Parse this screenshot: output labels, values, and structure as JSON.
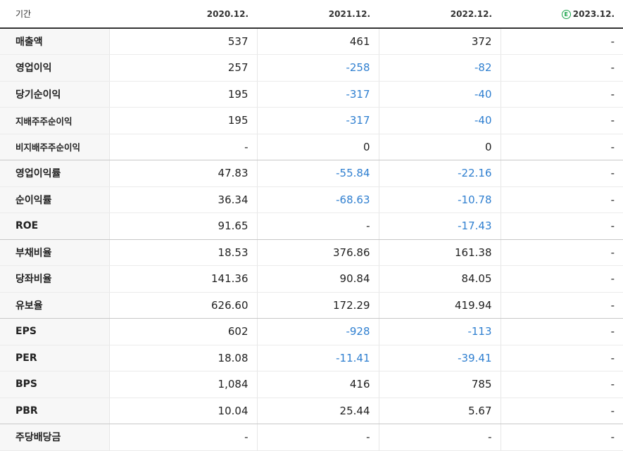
{
  "table": {
    "header": {
      "label": "기간",
      "periods": [
        "2020.12.",
        "2021.12.",
        "2022.12.",
        "2023.12."
      ],
      "estimate_icon": "Ⓔ"
    },
    "rows": [
      {
        "label": "매출액",
        "values": [
          "537",
          "461",
          "372",
          "-"
        ]
      },
      {
        "label": "영업이익",
        "values": [
          "257",
          "-258",
          "-82",
          "-"
        ]
      },
      {
        "label": "당기순이익",
        "values": [
          "195",
          "-317",
          "-40",
          "-"
        ]
      },
      {
        "label": "지배주주순이익",
        "values": [
          "195",
          "-317",
          "-40",
          "-"
        ]
      },
      {
        "label": "비지배주주순이익",
        "values": [
          "-",
          "0",
          "0",
          "-"
        ]
      },
      {
        "label": "영업이익률",
        "values": [
          "47.83",
          "-55.84",
          "-22.16",
          "-"
        ]
      },
      {
        "label": "순이익률",
        "values": [
          "36.34",
          "-68.63",
          "-10.78",
          "-"
        ]
      },
      {
        "label": "ROE",
        "values": [
          "91.65",
          "-",
          "-17.43",
          "-"
        ]
      },
      {
        "label": "부채비율",
        "values": [
          "18.53",
          "376.86",
          "161.38",
          "-"
        ]
      },
      {
        "label": "당좌비율",
        "values": [
          "141.36",
          "90.84",
          "84.05",
          "-"
        ]
      },
      {
        "label": "유보율",
        "values": [
          "626.60",
          "172.29",
          "419.94",
          "-"
        ]
      },
      {
        "label": "EPS",
        "values": [
          "602",
          "-928",
          "-113",
          "-"
        ]
      },
      {
        "label": "PER",
        "values": [
          "18.08",
          "-11.41",
          "-39.41",
          "-"
        ]
      },
      {
        "label": "BPS",
        "values": [
          "1,084",
          "416",
          "785",
          "-"
        ]
      },
      {
        "label": "PBR",
        "values": [
          "10.04",
          "25.44",
          "5.67",
          "-"
        ]
      },
      {
        "label": "주당배당금",
        "values": [
          "-",
          "-",
          "-",
          "-"
        ]
      }
    ]
  },
  "colors": {
    "negative": "#2f7fd0",
    "estimate": "#1aa34a"
  }
}
